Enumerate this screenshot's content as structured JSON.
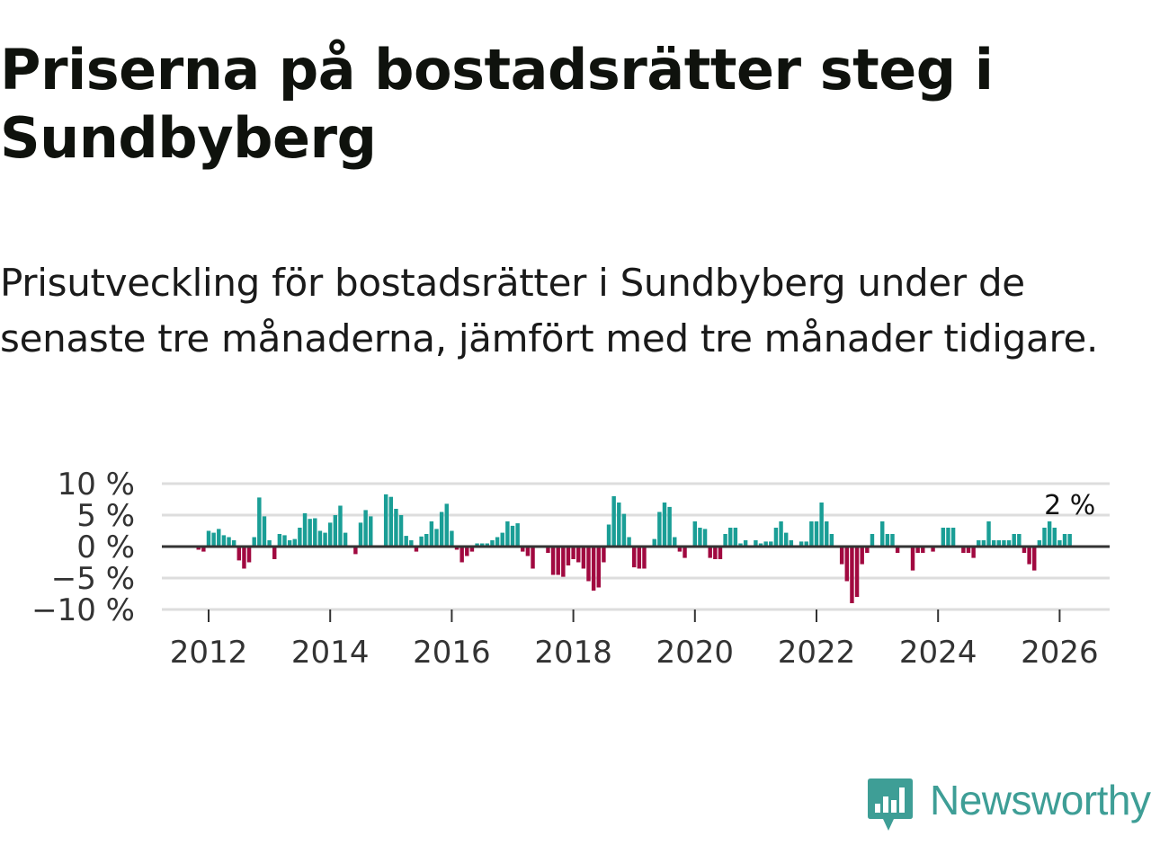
{
  "header": {
    "title": "Priserna på bostadsrätter steg i Sundbyberg",
    "subtitle": "Prisutveckling för bostadsrätter i Sundbyberg under de senaste tre månaderna, jämfört med tre månader tidigare."
  },
  "brand": {
    "name": "Newsworthy",
    "color": "#3e9e96"
  },
  "colors": {
    "positive": "#1a9e96",
    "negative": "#a10940",
    "zero_line": "#333333",
    "grid": "#dddddd"
  },
  "chart_data": {
    "type": "bar",
    "title": "Prisutveckling för bostadsrätter i Sundbyberg",
    "ylabel": "",
    "xlabel": "",
    "unit": "%",
    "x_start": {
      "year": 2011,
      "month": 11
    },
    "ylim": [
      -10,
      10
    ],
    "y_ticks": [
      {
        "value": 10,
        "label": "10 %"
      },
      {
        "value": 5,
        "label": "5 %"
      },
      {
        "value": 0,
        "label": "0 %"
      },
      {
        "value": -5,
        "label": "−5 %"
      },
      {
        "value": -10,
        "label": "−10 %"
      }
    ],
    "x_ticks": [
      {
        "value": 2012,
        "label": "2012"
      },
      {
        "value": 2014,
        "label": "2014"
      },
      {
        "value": 2016,
        "label": "2016"
      },
      {
        "value": 2018,
        "label": "2018"
      },
      {
        "value": 2020,
        "label": "2020"
      },
      {
        "value": 2022,
        "label": "2022"
      },
      {
        "value": 2024,
        "label": "2024"
      },
      {
        "value": 2026,
        "label": "2026"
      }
    ],
    "last_value_label": "2 %",
    "values": [
      -0.5,
      -0.8,
      2.5,
      2.2,
      2.8,
      1.8,
      1.5,
      1.0,
      -2.2,
      -3.5,
      -2.5,
      1.5,
      7.8,
      4.8,
      1.0,
      -2.0,
      2.0,
      1.8,
      1.0,
      1.2,
      3.0,
      5.3,
      4.4,
      4.5,
      2.5,
      2.2,
      3.8,
      5.0,
      6.5,
      2.2,
      0.2,
      -1.2,
      3.8,
      5.8,
      4.8,
      0.2,
      0.2,
      8.3,
      7.9,
      6.0,
      5.0,
      1.7,
      1.0,
      -0.8,
      1.6,
      2.0,
      4.0,
      2.8,
      5.5,
      6.8,
      2.5,
      -0.5,
      -2.5,
      -1.5,
      -0.8,
      0.5,
      0.5,
      0.5,
      1.0,
      1.5,
      2.2,
      4.0,
      3.3,
      3.7,
      -0.8,
      -1.5,
      -3.5,
      0.2,
      -0.2,
      -1.0,
      -4.5,
      -4.5,
      -4.8,
      -3.0,
      -2.0,
      -2.5,
      -3.5,
      -5.5,
      -7.0,
      -6.5,
      -2.5,
      3.5,
      8.0,
      7.0,
      5.2,
      1.5,
      -3.3,
      -3.5,
      -3.5,
      0.2,
      1.2,
      5.5,
      7.0,
      6.3,
      1.5,
      -0.8,
      -1.8,
      0.2,
      4.0,
      3.0,
      2.8,
      -1.8,
      -2.0,
      -2.0,
      2.0,
      3.0,
      3.0,
      0.5,
      1.0,
      0.2,
      1.0,
      0.5,
      0.8,
      0.8,
      3.0,
      4.0,
      2.2,
      1.0,
      0.2,
      0.8,
      0.8,
      4.0,
      4.0,
      7.0,
      4.0,
      2.0,
      -0.2,
      -2.8,
      -5.5,
      -9.0,
      -8.0,
      -2.8,
      -1.0,
      2.0,
      0.2,
      4.0,
      2.0,
      2.0,
      -1.0,
      0.2,
      -0.2,
      -3.8,
      -1.0,
      -1.0,
      -0.2,
      -0.8,
      0.2,
      3.0,
      3.0,
      3.0,
      0.2,
      -1.0,
      -1.0,
      -1.8,
      1.0,
      1.0,
      4.0,
      1.0,
      1.0,
      1.0,
      1.0,
      2.0,
      2.0,
      -1.0,
      -2.8,
      -3.8,
      1.0,
      3.0,
      4.0,
      3.0,
      1.0,
      2.0,
      2.0
    ]
  }
}
